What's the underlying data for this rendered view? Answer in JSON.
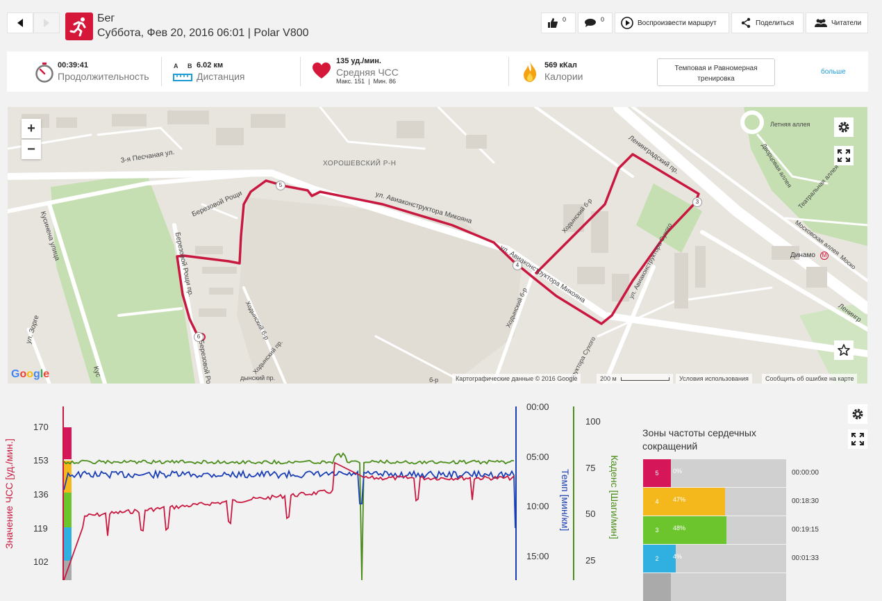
{
  "header": {
    "title": "Бег",
    "subtitle": "Суббота, Фев 20, 2016 06:01 | Polar V800",
    "colors": {
      "accent": "#d5173a"
    }
  },
  "toolbar": {
    "likes": "0",
    "comments": "0",
    "play_route": "Воспроизвести маршрут",
    "share": "Поделиться",
    "followers": "Читатели"
  },
  "summary": {
    "duration_value": "00:39:41",
    "duration_label": "Продолжительность",
    "dist_a": "A",
    "dist_b": "B",
    "distance_value": "6.02 км",
    "distance_label": "Дистанция",
    "hr_value": "135 уд./мин.",
    "hr_label": "Средняя ЧСС",
    "hr_sub": "Макс. 151  |  Мин. 86",
    "cal_value": "569 кКал",
    "cal_label": "Калории",
    "training_line1": "Темповая и Равномерная",
    "training_line2": "тренировка",
    "more": "больше"
  },
  "map": {
    "zoom_in": "+",
    "zoom_out": "−",
    "labels": {
      "district": "ХОРОШЕВСКИЙ Р-Н",
      "pesch": "3-я Песчаная ул.",
      "mikoyan1": "ул. Авиаконструктора Микояна",
      "mikoyan2": "ул. Авиаконструктора Микояна",
      "leningrad": "Ленинградский пр.",
      "leningrad2": "Ленингр",
      "letnyaya": "Летняя аллея",
      "dvorc": "Дворцовая аллея",
      "teatr": "Театральная аллея",
      "moscow": "Московская аллея",
      "moscow2": "Моско",
      "dinamo": "Динамо",
      "kusin": "Кусинена улица",
      "kus2": "Кус",
      "zorge": "ул. Зорге",
      "berez1": "Березовой Рощи",
      "berez2": "Березовой Рощи пр.",
      "berez3": "Березовой Рощ",
      "hod1": "Ходынский б-р",
      "hod2": "Ходынский б-р",
      "hod3": "Ходынский б-р",
      "hod4": "Ходынский пр.",
      "hod5": "дынский пр.",
      "suhoi1": "ул. Авиаконструктора Сухого",
      "suhoi2": "структора Сухого",
      "bp": "б-р"
    },
    "markers": [
      "3",
      "4",
      "5",
      "6"
    ],
    "google": "Google",
    "mapdata": "Картографические данные © 2016 Google",
    "scale": "200 м",
    "terms": "Условия использования",
    "report": "Сообщить об ошибке на карте"
  },
  "chart_data": {
    "type": "line",
    "x": [],
    "series": [
      {
        "name": "Значение ЧСС [уд./мин.]",
        "color": "#c8183f",
        "axis": "left"
      },
      {
        "name": "Темп [мин/км]",
        "color": "#1a3fb5",
        "axis": "right1"
      },
      {
        "name": "Каденс [Шаги/мин]",
        "color": "#4a8c1a",
        "axis": "right2"
      }
    ],
    "ylabel": "Значение ЧСС [уд./мин.]",
    "y2label": "Темп [мин/км]",
    "y3label": "Каденс [Шаги/мин]",
    "y_ticks": [
      "170",
      "153",
      "136",
      "119",
      "102"
    ],
    "y2_ticks": [
      "00:00",
      "05:00",
      "10:00",
      "15:00"
    ],
    "y3_ticks": [
      "100",
      "75",
      "50",
      "25"
    ]
  },
  "zones": {
    "title": "Зоны частоты сердечных сокращений",
    "items": [
      {
        "num": "5",
        "pct": "0%",
        "fraction": 0.0,
        "time": "00:00:00",
        "color": "#d5175a"
      },
      {
        "num": "4",
        "pct": "47%",
        "fraction": 0.47,
        "time": "00:18:30",
        "color": "#f4b81d"
      },
      {
        "num": "3",
        "pct": "48%",
        "fraction": 0.48,
        "time": "00:19:15",
        "color": "#6cc52d"
      },
      {
        "num": "2",
        "pct": "4%",
        "fraction": 0.04,
        "time": "00:01:33",
        "color": "#2fb0e0"
      }
    ]
  }
}
